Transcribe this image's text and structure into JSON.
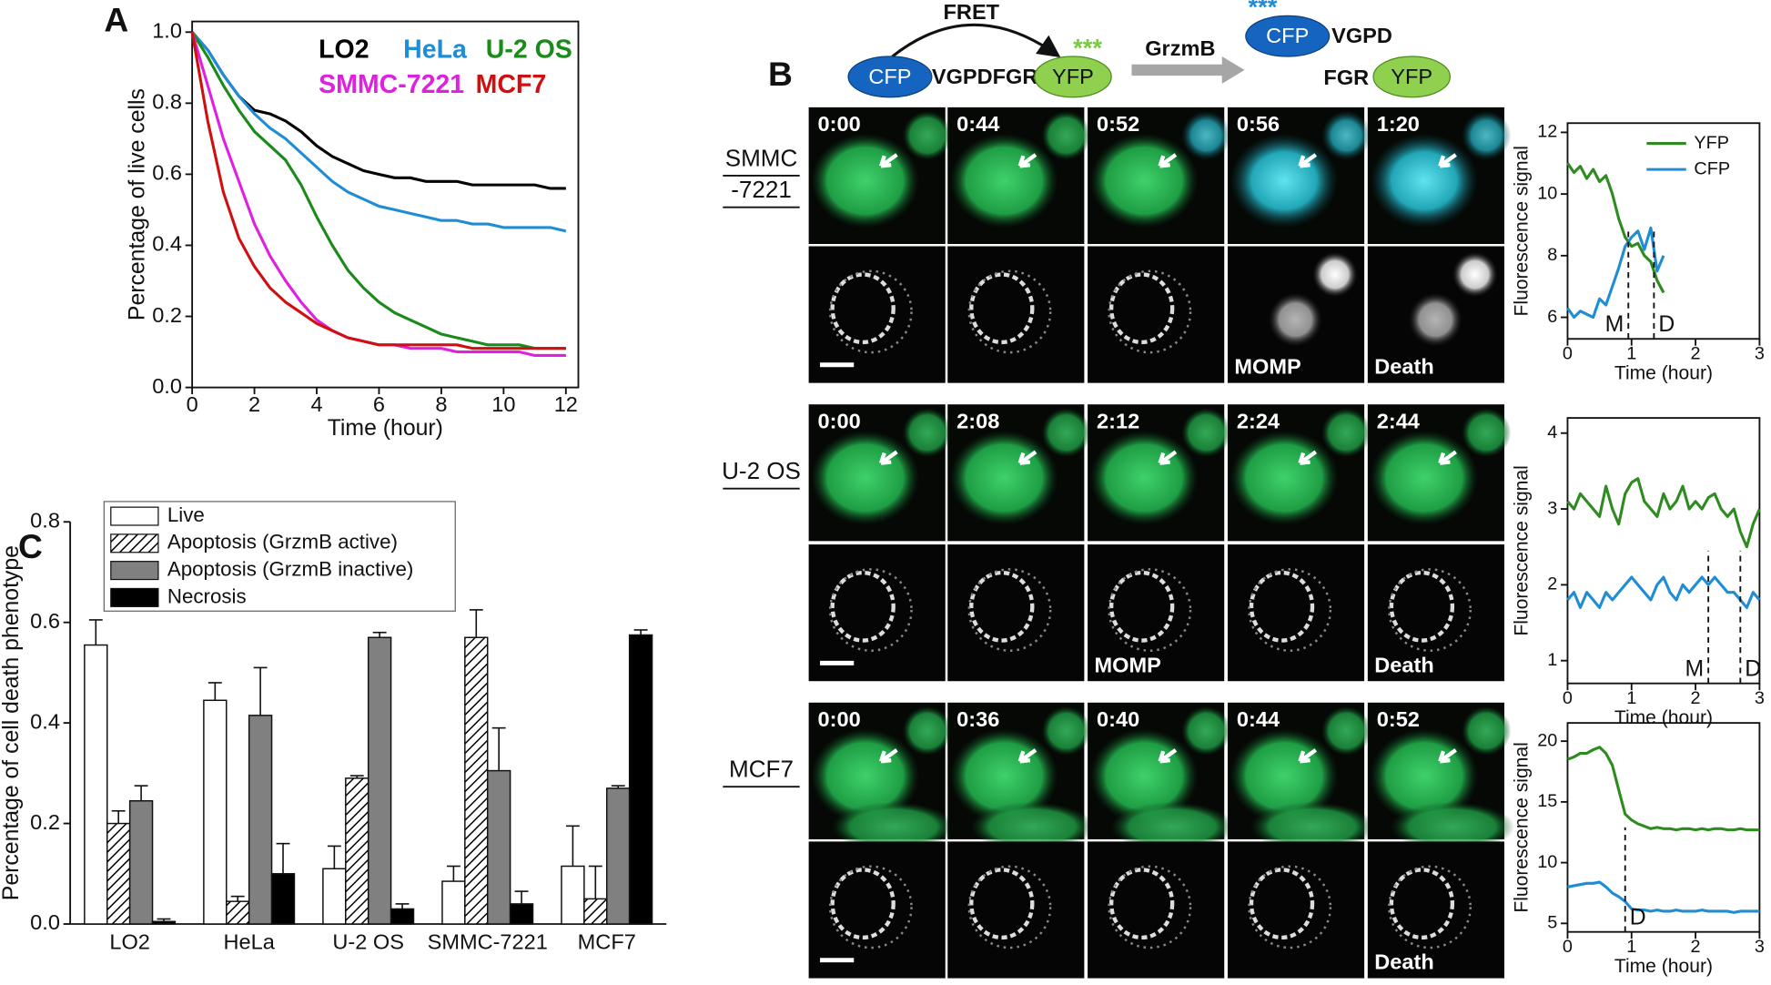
{
  "figure": {
    "panel_labels": [
      "A",
      "B",
      "C"
    ],
    "schematic": {
      "fret": "FRET",
      "cfp": "CFP",
      "linker": "VGPDFGR",
      "yfp": "YFP",
      "stars": "***",
      "enzyme": "GrzmB",
      "cfp_cut": "CFP",
      "linker_cfp": "VGPD",
      "linker_yfp": "FGR",
      "yfp_cut": "YFP",
      "stars_cut": "***"
    },
    "image_rows": [
      {
        "label": [
          "SMMC",
          "-7221"
        ],
        "times": [
          "0:00",
          "0:44",
          "0:52",
          "0:56",
          "1:20"
        ],
        "gray_labels": {
          "3": "MOMP",
          "4": "Death"
        }
      },
      {
        "label": [
          "U-2 OS"
        ],
        "times": [
          "0:00",
          "2:08",
          "2:12",
          "2:24",
          "2:44"
        ],
        "gray_labels": {
          "2": "MOMP",
          "4": "Death"
        }
      },
      {
        "label": [
          "MCF7"
        ],
        "times": [
          "0:00",
          "0:36",
          "0:40",
          "0:44",
          "0:52"
        ],
        "gray_labels": {
          "4": "Death"
        }
      }
    ]
  },
  "chart_data": [
    {
      "type": "line",
      "xlabel": "Time (hour)",
      "ylabel": "Percentage of live cells",
      "legend": "upper right",
      "x": [
        0,
        0.5,
        1,
        1.5,
        2,
        2.5,
        3,
        3.5,
        4,
        4.5,
        5,
        5.5,
        6,
        6.5,
        7,
        7.5,
        8,
        8.5,
        9,
        9.5,
        10,
        10.5,
        11,
        11.5,
        12
      ],
      "xlim": [
        0,
        12.4
      ],
      "xticks": [
        0,
        2,
        4,
        6,
        8,
        10,
        12
      ],
      "ylim": [
        0,
        1.03
      ],
      "yticks": [
        {
          "value": 0,
          "label": "0.0"
        },
        0.2,
        0.4,
        0.6,
        0.8,
        {
          "value": 1,
          "label": "1.0"
        }
      ],
      "series": [
        {
          "name": "LO2",
          "color": "#000000",
          "values": [
            1.0,
            0.95,
            0.88,
            0.82,
            0.78,
            0.77,
            0.75,
            0.72,
            0.68,
            0.65,
            0.63,
            0.61,
            0.6,
            0.59,
            0.59,
            0.58,
            0.58,
            0.58,
            0.57,
            0.57,
            0.57,
            0.57,
            0.57,
            0.56,
            0.56
          ]
        },
        {
          "name": "HeLa",
          "color": "#1f8dd6",
          "values": [
            1.0,
            0.95,
            0.88,
            0.82,
            0.77,
            0.73,
            0.7,
            0.66,
            0.62,
            0.58,
            0.55,
            0.53,
            0.51,
            0.5,
            0.49,
            0.48,
            0.47,
            0.47,
            0.46,
            0.46,
            0.45,
            0.45,
            0.45,
            0.45,
            0.44
          ]
        },
        {
          "name": "U-2 OS",
          "color": "#1a8a1a",
          "values": [
            1.0,
            0.93,
            0.85,
            0.78,
            0.72,
            0.68,
            0.64,
            0.57,
            0.48,
            0.4,
            0.33,
            0.28,
            0.24,
            0.21,
            0.19,
            0.17,
            0.15,
            0.14,
            0.13,
            0.12,
            0.12,
            0.12,
            0.11,
            0.11,
            0.11
          ]
        },
        {
          "name": "SMMC-7221",
          "color": "#e020e0",
          "values": [
            1.0,
            0.85,
            0.7,
            0.58,
            0.46,
            0.37,
            0.3,
            0.24,
            0.19,
            0.16,
            0.14,
            0.13,
            0.12,
            0.12,
            0.11,
            0.11,
            0.11,
            0.1,
            0.1,
            0.1,
            0.1,
            0.1,
            0.09,
            0.09,
            0.09
          ]
        },
        {
          "name": "MCF7",
          "color": "#d01010",
          "values": [
            1.0,
            0.75,
            0.55,
            0.42,
            0.34,
            0.28,
            0.24,
            0.21,
            0.18,
            0.16,
            0.14,
            0.13,
            0.12,
            0.12,
            0.12,
            0.12,
            0.12,
            0.12,
            0.11,
            0.11,
            0.11,
            0.11,
            0.11,
            0.11,
            0.11
          ]
        }
      ]
    },
    {
      "type": "bar",
      "ylabel": "Percentage of cell death phenotype",
      "legend": "upper left",
      "categories": [
        "LO2",
        "HeLa",
        "U-2 OS",
        "SMMC-7221",
        "MCF7"
      ],
      "ylim": [
        0,
        0.8
      ],
      "yticks": [
        {
          "value": 0,
          "label": "0.0"
        },
        0.2,
        0.4,
        0.6,
        0.8
      ],
      "series": [
        {
          "name": "Live",
          "color": "#ffffff",
          "values": [
            0.555,
            0.445,
            0.11,
            0.085,
            0.115
          ],
          "errors": [
            0.05,
            0.035,
            0.045,
            0.03,
            0.08
          ]
        },
        {
          "name": "Apoptosis (GrzmB active)",
          "color": "#ffffff",
          "pattern": "hatch",
          "values": [
            0.2,
            0.045,
            0.29,
            0.57,
            0.05
          ],
          "errors": [
            0.025,
            0.01,
            0.005,
            0.055,
            0.065
          ]
        },
        {
          "name": "Apoptosis (GrzmB inactive)",
          "color": "#808080",
          "values": [
            0.245,
            0.415,
            0.57,
            0.305,
            0.27
          ],
          "errors": [
            0.03,
            0.095,
            0.01,
            0.085,
            0.005
          ]
        },
        {
          "name": "Necrosis",
          "color": "#000000",
          "values": [
            0.005,
            0.1,
            0.03,
            0.04,
            0.575
          ],
          "errors": [
            0.005,
            0.06,
            0.01,
            0.025,
            0.01
          ]
        }
      ]
    },
    {
      "type": "line",
      "xlabel": "Time (hour)",
      "ylabel": "Fluorescence signal",
      "legend": "upper right",
      "x": [
        0,
        0.1,
        0.2,
        0.3,
        0.4,
        0.5,
        0.6,
        0.7,
        0.8,
        0.9,
        1.0,
        1.1,
        1.2,
        1.3,
        1.4,
        1.5
      ],
      "xlim": [
        0,
        3
      ],
      "xticks": [
        0,
        1,
        2,
        3
      ],
      "ylim": [
        5.3,
        12.3
      ],
      "yticks": [
        6,
        8,
        10,
        12
      ],
      "annotations": [
        {
          "text": "M",
          "x": 0.95
        },
        {
          "text": "D",
          "x": 1.35
        }
      ],
      "series": [
        {
          "name": "YFP",
          "color": "#2e8b20",
          "values": [
            11.0,
            10.7,
            10.9,
            10.5,
            10.8,
            10.4,
            10.6,
            10.0,
            9.2,
            8.6,
            8.3,
            8.4,
            8.0,
            7.8,
            7.2,
            6.8
          ]
        },
        {
          "name": "CFP",
          "color": "#1f8dd6",
          "values": [
            6.3,
            6.0,
            6.2,
            6.1,
            6.0,
            6.6,
            6.4,
            7.0,
            7.6,
            8.3,
            8.6,
            8.8,
            8.2,
            8.9,
            7.5,
            8.0
          ]
        }
      ]
    },
    {
      "type": "line",
      "xlabel": "Time (hour)",
      "ylabel": "Fluorescence signal",
      "x": [
        0,
        0.1,
        0.2,
        0.3,
        0.4,
        0.5,
        0.6,
        0.7,
        0.8,
        0.9,
        1.0,
        1.1,
        1.2,
        1.3,
        1.4,
        1.5,
        1.6,
        1.7,
        1.8,
        1.9,
        2.0,
        2.1,
        2.2,
        2.3,
        2.4,
        2.5,
        2.6,
        2.7,
        2.8,
        2.9,
        3.0
      ],
      "xlim": [
        0,
        3
      ],
      "xticks": [
        0,
        1,
        2,
        3
      ],
      "ylim": [
        0.7,
        4.2
      ],
      "yticks": [
        1,
        2,
        3,
        4
      ],
      "annotations": [
        {
          "text": "M",
          "x": 2.2
        },
        {
          "text": "D",
          "x": 2.7
        }
      ],
      "series": [
        {
          "name": "YFP",
          "color": "#2e8b20",
          "values": [
            3.1,
            3.0,
            3.2,
            3.1,
            3.0,
            2.9,
            3.3,
            3.0,
            2.8,
            3.2,
            3.35,
            3.4,
            3.1,
            3.0,
            2.9,
            3.2,
            3.0,
            3.1,
            3.3,
            3.0,
            3.1,
            3.0,
            3.15,
            3.2,
            3.0,
            2.9,
            3.0,
            2.7,
            2.5,
            2.8,
            3.0
          ]
        },
        {
          "name": "CFP",
          "color": "#1f8dd6",
          "values": [
            1.8,
            1.9,
            1.7,
            1.9,
            1.8,
            1.7,
            1.9,
            1.8,
            1.9,
            2.0,
            2.1,
            2.0,
            1.9,
            1.8,
            2.0,
            2.1,
            1.9,
            1.8,
            2.0,
            1.9,
            2.0,
            2.1,
            2.0,
            2.1,
            2.0,
            1.9,
            1.9,
            1.8,
            1.7,
            1.9,
            1.8
          ]
        }
      ]
    },
    {
      "type": "line",
      "xlabel": "Time (hour)",
      "ylabel": "Fluorescence signal",
      "x": [
        0,
        0.1,
        0.2,
        0.3,
        0.4,
        0.5,
        0.6,
        0.7,
        0.8,
        0.9,
        1.0,
        1.1,
        1.2,
        1.3,
        1.4,
        1.5,
        1.6,
        1.7,
        1.8,
        1.9,
        2.0,
        2.1,
        2.2,
        2.3,
        2.4,
        2.5,
        2.6,
        2.7,
        2.8,
        2.9,
        3.0
      ],
      "xlim": [
        0,
        3
      ],
      "xticks": [
        0,
        1,
        2,
        3
      ],
      "ylim": [
        4.3,
        21.5
      ],
      "yticks": [
        5,
        10,
        15,
        20
      ],
      "annotations": [
        {
          "text": "D",
          "x": 0.9
        }
      ],
      "series": [
        {
          "name": "YFP",
          "color": "#2e8b20",
          "values": [
            18.5,
            18.7,
            19.0,
            19.0,
            19.3,
            19.5,
            19.0,
            18.0,
            16.0,
            14.0,
            13.5,
            13.2,
            13.0,
            12.8,
            12.9,
            12.8,
            12.8,
            12.7,
            12.8,
            12.8,
            12.7,
            12.8,
            12.7,
            12.8,
            12.8,
            12.7,
            12.7,
            12.8,
            12.7,
            12.7,
            12.7
          ]
        },
        {
          "name": "CFP",
          "color": "#1f8dd6",
          "values": [
            8.0,
            8.1,
            8.2,
            8.3,
            8.3,
            8.4,
            8.0,
            7.5,
            7.2,
            6.8,
            6.2,
            6.1,
            6.1,
            6.0,
            6.1,
            6.0,
            6.0,
            6.1,
            6.0,
            6.0,
            6.0,
            6.1,
            6.0,
            6.0,
            6.0,
            6.0,
            5.9,
            6.0,
            6.0,
            6.0,
            6.0
          ]
        }
      ]
    }
  ]
}
